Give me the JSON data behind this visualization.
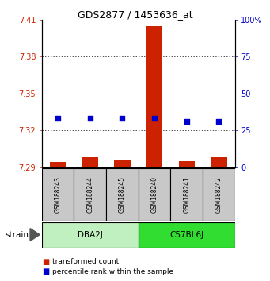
{
  "title": "GDS2877 / 1453636_at",
  "samples": [
    "GSM188243",
    "GSM188244",
    "GSM188245",
    "GSM188240",
    "GSM188241",
    "GSM188242"
  ],
  "transformed_counts": [
    7.294,
    7.298,
    7.296,
    7.405,
    7.295,
    7.298
  ],
  "percentile_ranks": [
    33,
    33,
    33,
    33,
    31,
    31
  ],
  "ylim_left": [
    7.29,
    7.41
  ],
  "ylim_right": [
    0,
    100
  ],
  "yticks_left": [
    7.29,
    7.32,
    7.35,
    7.38,
    7.41
  ],
  "yticks_right": [
    0,
    25,
    50,
    75,
    100
  ],
  "ytick_labels_right": [
    "0",
    "25",
    "50",
    "75",
    "100%"
  ],
  "grid_lines": [
    7.32,
    7.35,
    7.38
  ],
  "bar_color": "#CC2200",
  "dot_color": "#0000CC",
  "bar_width": 0.5,
  "bar_bottom": 7.29,
  "background_color": "#ffffff",
  "sample_box_color": "#c8c8c8",
  "dba2j_color": "#c0f0c0",
  "c57bl6j_color": "#30dd30",
  "left_ytick_color": "#CC2200",
  "right_ytick_color": "#0000CC",
  "title_fontsize": 9,
  "tick_fontsize": 7,
  "sample_fontsize": 5.5,
  "group_fontsize": 7.5,
  "legend_fontsize": 6.5
}
